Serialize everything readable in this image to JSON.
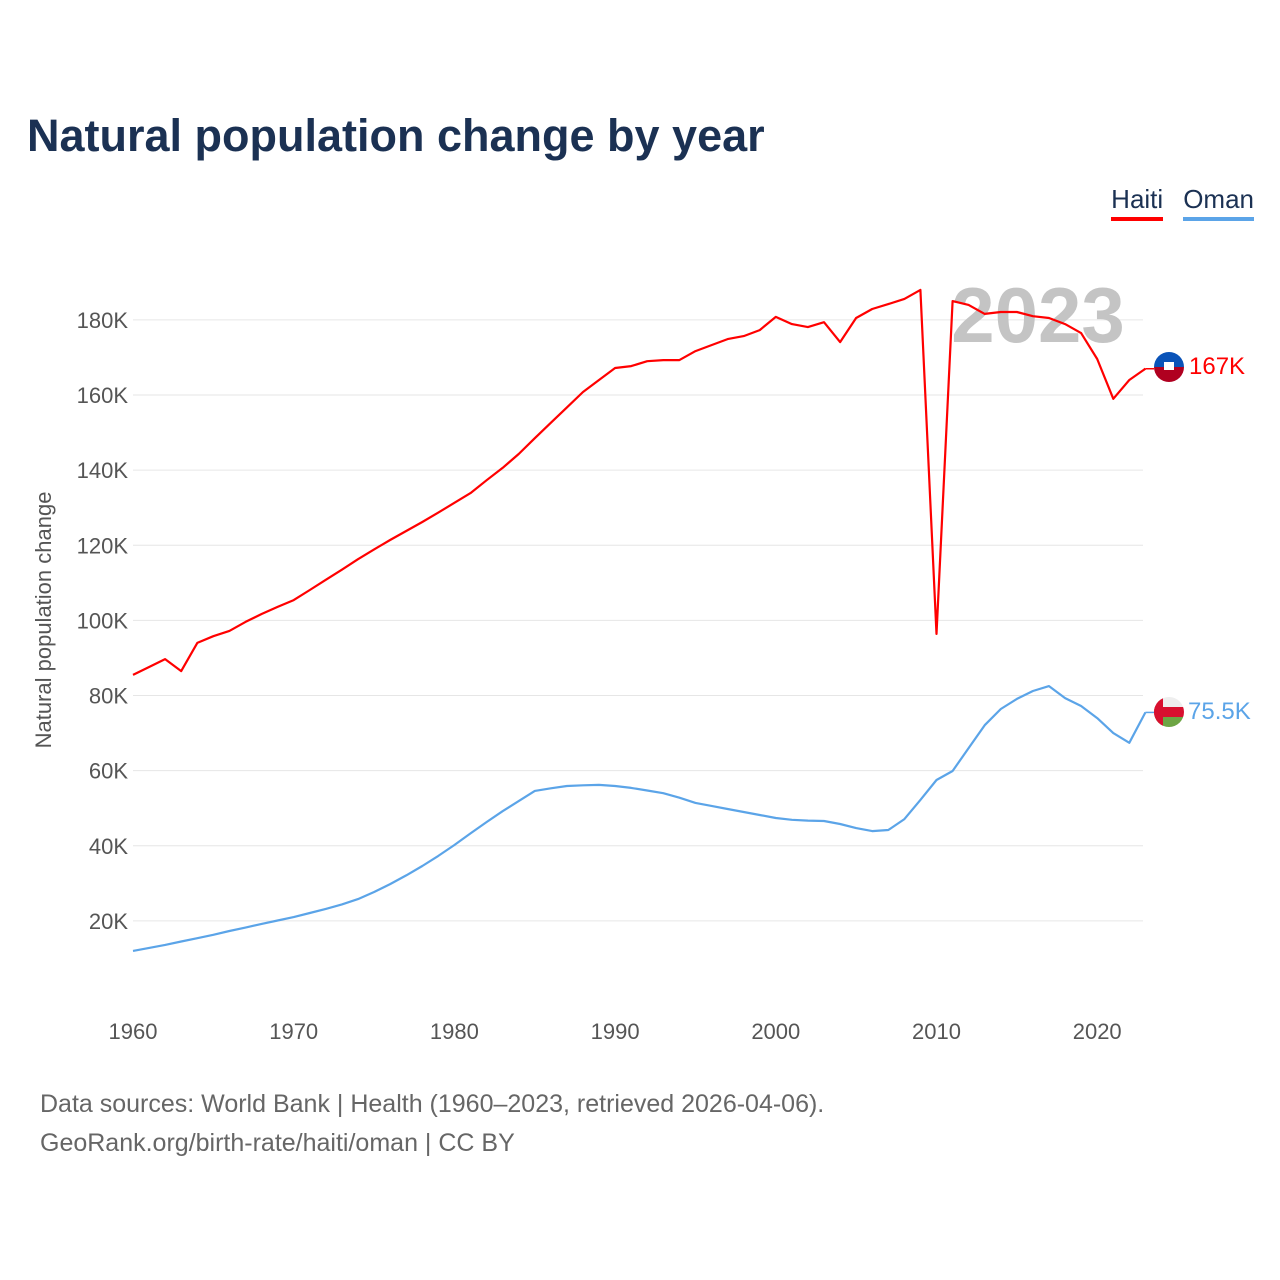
{
  "title": "Natural population change by year",
  "footer": {
    "line1": "Data sources: World Bank | Health (1960–2023, retrieved 2026-04-06).",
    "line2": "GeoRank.org/birth-rate/haiti/oman | CC BY"
  },
  "chart_data": {
    "type": "line",
    "title": "Natural population change by year",
    "xlabel": "",
    "ylabel": "Natural population change",
    "xlim": [
      1960,
      2023
    ],
    "ylim": [
      0,
      190000
    ],
    "x_ticks": [
      1960,
      1970,
      1980,
      1990,
      2000,
      2010,
      2020
    ],
    "y_ticks": [
      20000,
      40000,
      60000,
      80000,
      100000,
      120000,
      140000,
      160000,
      180000
    ],
    "y_tick_labels": [
      "20K",
      "40K",
      "60K",
      "80K",
      "100K",
      "120K",
      "140K",
      "160K",
      "180K"
    ],
    "grid": true,
    "legend_position": "top-right",
    "year_watermark": "2023",
    "x_start": 1960,
    "series": [
      {
        "name": "Haiti",
        "color": "#ff0000",
        "end_label": "167K",
        "flag": "haiti-flag",
        "values": [
          85.5,
          87.6,
          89.7,
          86.5,
          94,
          95.8,
          97.2,
          99.6,
          101.7,
          103.6,
          105.4,
          108.1,
          110.8,
          113.5,
          116.3,
          118.9,
          121.4,
          123.8,
          126.2,
          128.7,
          131.3,
          133.9,
          137.3,
          140.6,
          144.3,
          148.5,
          152.6,
          156.7,
          160.8,
          164,
          167.2,
          167.7,
          169,
          169.3,
          169.3,
          171.7,
          173.3,
          174.9,
          175.7,
          177.3,
          180.8,
          178.9,
          178.1,
          179.4,
          174.1,
          180.5,
          182.9,
          184.2,
          185.6,
          188,
          96.4,
          185,
          184,
          181.6,
          182.1,
          182.1,
          181,
          180.5,
          178.9,
          176.5,
          169.6,
          159,
          164,
          167
        ]
      },
      {
        "name": "Oman",
        "color": "#5ba4e8",
        "end_label": "75.5K",
        "flag": "oman-flag",
        "values": [
          12,
          12.8,
          13.6,
          14.5,
          15.4,
          16.3,
          17.3,
          18.2,
          19.2,
          20.1,
          21,
          22.1,
          23.2,
          24.4,
          25.8,
          27.7,
          29.8,
          32.1,
          34.6,
          37.3,
          40.2,
          43.3,
          46.3,
          49.2,
          51.9,
          54.6,
          55.3,
          55.9,
          56.1,
          56.2,
          55.9,
          55.4,
          54.7,
          54,
          52.8,
          51.4,
          50.6,
          49.8,
          49,
          48.2,
          47.4,
          46.9,
          46.7,
          46.6,
          45.8,
          44.7,
          43.9,
          44.2,
          47.1,
          52.2,
          57.5,
          59.9,
          66,
          72.1,
          76.4,
          79.1,
          81.2,
          82.5,
          79.3,
          77.2,
          74,
          70,
          67.4,
          75.5
        ]
      }
    ],
    "values_unit": "thousands"
  }
}
